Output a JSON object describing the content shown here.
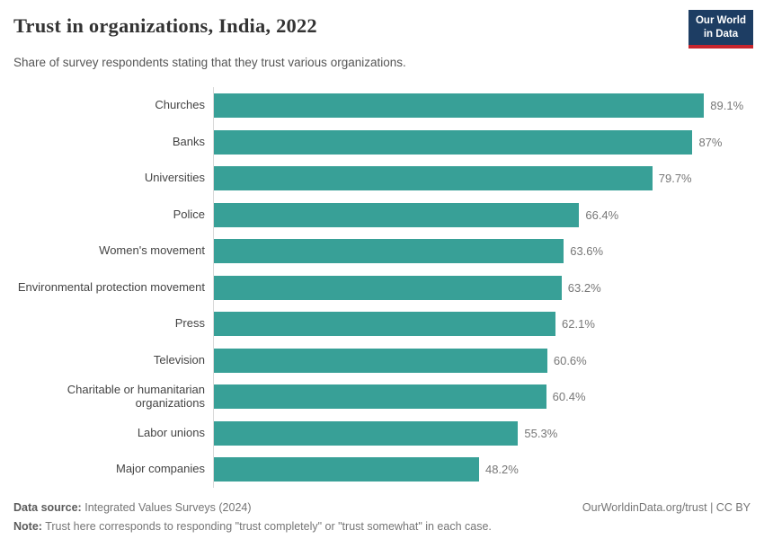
{
  "header": {
    "title": "Trust in organizations, India, 2022",
    "subtitle": "Share of survey respondents stating that they trust various organizations.",
    "logo_line1": "Our World",
    "logo_line2": "in Data"
  },
  "chart_data": {
    "type": "bar",
    "orientation": "horizontal",
    "title": "Trust in organizations, India, 2022",
    "categories": [
      "Churches",
      "Banks",
      "Universities",
      "Police",
      "Women's movement",
      "Environmental protection movement",
      "Press",
      "Television",
      "Charitable or humanitarian organizations",
      "Labor unions",
      "Major companies"
    ],
    "values": [
      89.1,
      87,
      79.7,
      66.4,
      63.6,
      63.2,
      62.1,
      60.6,
      60.4,
      55.3,
      48.2
    ],
    "value_labels": [
      "89.1%",
      "87%",
      "79.7%",
      "66.4%",
      "63.6%",
      "63.2%",
      "62.1%",
      "60.6%",
      "60.4%",
      "55.3%",
      "48.2%"
    ],
    "unit": "%",
    "xlim": [
      0,
      100
    ],
    "grid": false,
    "legend": "none",
    "bar_color": "#38a097"
  },
  "footer": {
    "source_label": "Data source:",
    "source_text": "Integrated Values Surveys (2024)",
    "credit": "OurWorldinData.org/trust | CC BY",
    "note_label": "Note:",
    "note_text": "Trust here corresponds to responding \"trust completely\" or \"trust somewhat\" in each case."
  },
  "colors": {
    "bar": "#38a097",
    "axis_line": "#d9d9d9",
    "logo_background": "#1d3d63",
    "logo_stripe": "#c7252d",
    "title_text": "#333333",
    "label_text": "#444444",
    "value_text": "#777777",
    "footer_text": "#757575"
  }
}
